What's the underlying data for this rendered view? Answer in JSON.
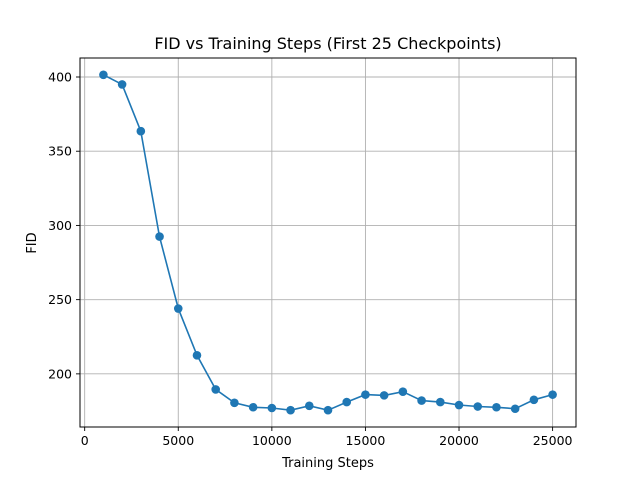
{
  "chart_data": {
    "type": "line",
    "title": "FID vs Training Steps (First 25 Checkpoints)",
    "xlabel": "Training Steps",
    "ylabel": "FID",
    "xlim": [
      -250,
      26250
    ],
    "ylim": [
      164.2,
      412.8
    ],
    "xticks": [
      0,
      5000,
      10000,
      15000,
      20000,
      25000
    ],
    "yticks": [
      200,
      250,
      300,
      350,
      400
    ],
    "grid": true,
    "color": "#1f77b4",
    "marker": "circle",
    "series": [
      {
        "x": [
          1000,
          2000,
          3000,
          4000,
          5000,
          6000,
          7000,
          8000,
          9000,
          10000,
          11000,
          12000,
          13000,
          14000,
          15000,
          16000,
          17000,
          18000,
          19000,
          20000,
          21000,
          22000,
          23000,
          24000,
          25000
        ],
        "y": [
          401.5,
          395.0,
          363.5,
          292.5,
          244.0,
          212.5,
          189.5,
          180.5,
          177.5,
          177.0,
          175.5,
          178.5,
          175.5,
          181.0,
          186.0,
          185.5,
          188.0,
          182.0,
          181.0,
          179.0,
          178.0,
          177.5,
          176.5,
          182.5,
          186.0
        ]
      }
    ]
  }
}
